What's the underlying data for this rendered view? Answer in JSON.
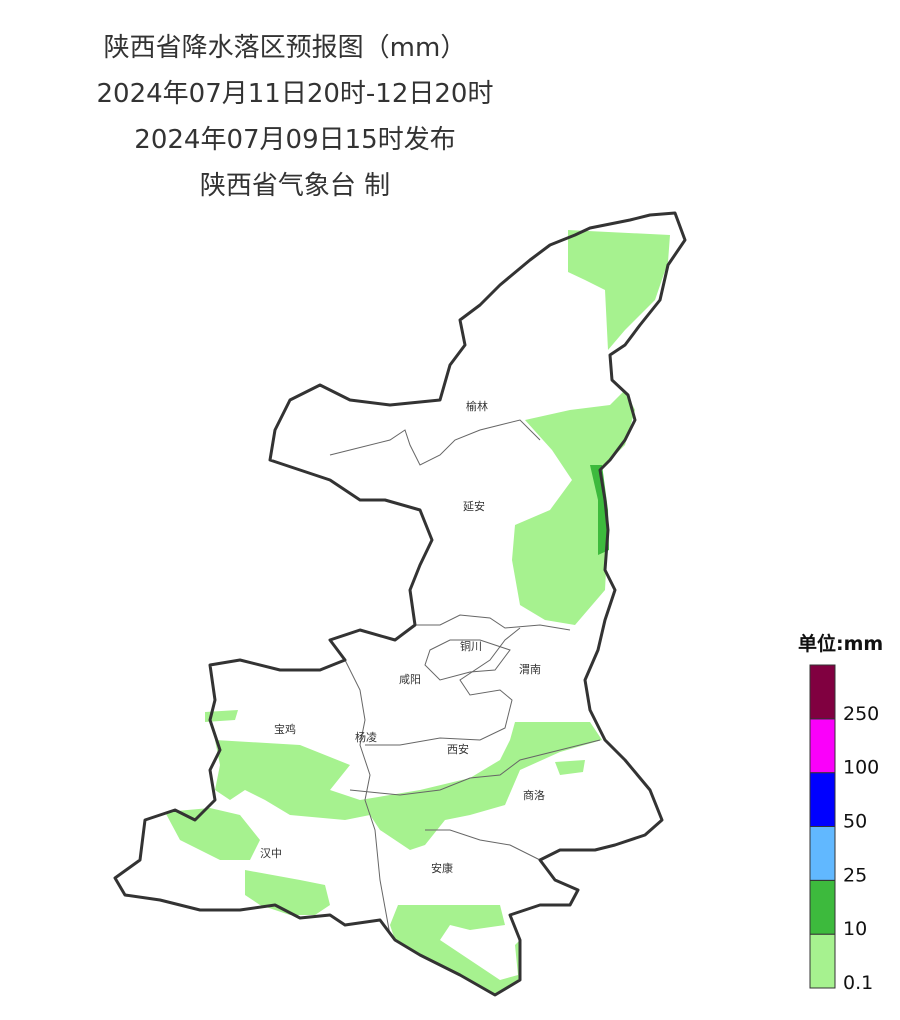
{
  "header": {
    "title": "陕西省降水落区预报图（mm）",
    "period": "2024年07月11日20时-12日20时",
    "issued": "2024年07月09日15时发布",
    "issuer": "陕西省气象台 制"
  },
  "cities": [
    "榆林",
    "延安",
    "铜川",
    "咸阳",
    "渭南",
    "宝鸡",
    "杨凌",
    "西安",
    "商洛",
    "汉中",
    "安康"
  ],
  "legend": {
    "title": "单位:mm",
    "ticks": [
      0.1,
      10,
      25,
      50,
      100,
      250
    ],
    "colors": [
      "#a6f28f",
      "#3dba3d",
      "#61b8ff",
      "#0000ff",
      "#fa00fa",
      "#800040"
    ]
  }
}
